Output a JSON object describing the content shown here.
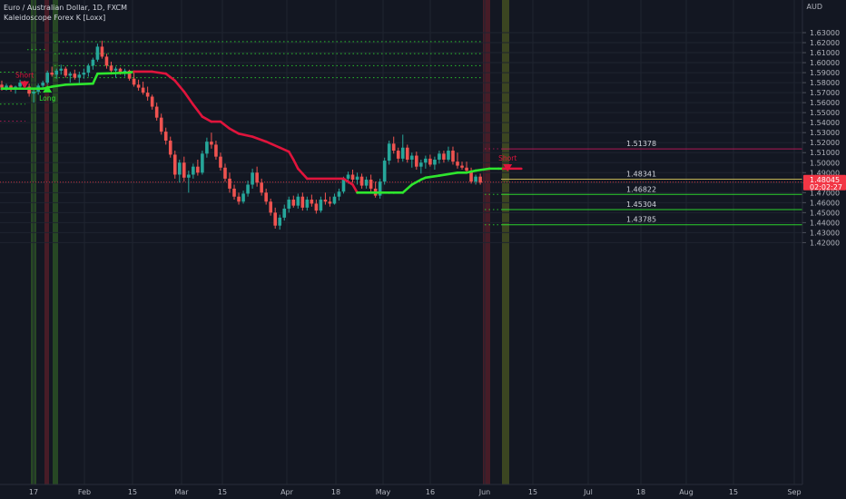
{
  "header": {
    "symbol_line": "Euro / Australian Dollar, 1D, FXCM",
    "indicator_line": "Kaleidoscope Forex K [Loxx]",
    "currency": "AUD"
  },
  "price_badge": {
    "price": "1.48045",
    "countdown": "02:02:27",
    "color": "#f23645"
  },
  "colors": {
    "background": "#131722",
    "up": "#26a69a",
    "down": "#ef5350",
    "trend_up": "#2ee62e",
    "trend_down": "#e0143c",
    "band_green": "#2f5a26",
    "band_red": "#5a1f2a",
    "band_olive": "#4a5522"
  },
  "chart_data": {
    "type": "candlestick",
    "y_range": [
      1.415,
      1.645
    ],
    "y_ticks": [
      "1.63000",
      "1.62000",
      "1.61000",
      "1.60000",
      "1.59000",
      "1.58000",
      "1.57000",
      "1.56000",
      "1.55000",
      "1.54000",
      "1.53000",
      "1.52000",
      "1.51000",
      "1.50000",
      "1.49000",
      "1.48000",
      "1.47000",
      "1.46000",
      "1.45000",
      "1.44000",
      "1.43000",
      "1.42000"
    ],
    "x_ticks": [
      "17",
      "Feb",
      "15",
      "Mar",
      "15",
      "Apr",
      "18",
      "May",
      "16",
      "Jun",
      "15",
      "Jul",
      "18",
      "Aug",
      "15",
      "Sep"
    ],
    "level_labels": [
      "1.51378",
      "1.48341",
      "1.46822",
      "1.45304",
      "1.43785"
    ],
    "levels": [
      {
        "value": 1.51378,
        "label": "1.51378",
        "color": "#c2185b",
        "labeled": true
      },
      {
        "value": 1.48341,
        "label": "1.48341",
        "color": "#d4c35a",
        "labeled": true
      },
      {
        "value": 1.46822,
        "label": "1.46822",
        "color": "#2ee62e",
        "labeled": true
      },
      {
        "value": 1.45304,
        "label": "1.45304",
        "color": "#2ee62e",
        "labeled": true
      },
      {
        "value": 1.43785,
        "label": "1.43785",
        "color": "#2ee62e",
        "labeled": true
      }
    ],
    "signals": [
      {
        "text": "Short",
        "type": "short",
        "day": 5,
        "price": 1.585
      },
      {
        "text": "Long",
        "type": "long",
        "day": 10,
        "price": 1.572
      },
      {
        "text": "Short",
        "type": "short",
        "day": 111,
        "price": 1.502
      }
    ],
    "trend_line": [
      [
        0,
        1.574,
        "up"
      ],
      [
        9,
        1.574,
        "up"
      ],
      [
        11,
        1.576,
        "up"
      ],
      [
        14,
        1.578,
        "up"
      ],
      [
        20,
        1.579,
        "up"
      ],
      [
        21,
        1.589,
        "up"
      ],
      [
        28,
        1.59,
        "up"
      ],
      [
        29,
        1.591,
        "down"
      ],
      [
        33,
        1.591,
        "down"
      ],
      [
        36,
        1.589,
        "down"
      ],
      [
        38,
        1.582,
        "down"
      ],
      [
        40,
        1.571,
        "down"
      ],
      [
        42,
        1.558,
        "down"
      ],
      [
        44,
        1.546,
        "down"
      ],
      [
        46,
        1.541,
        "down"
      ],
      [
        48,
        1.541,
        "down"
      ],
      [
        50,
        1.534,
        "down"
      ],
      [
        52,
        1.529,
        "down"
      ],
      [
        55,
        1.526,
        "down"
      ],
      [
        58,
        1.521,
        "down"
      ],
      [
        61,
        1.515,
        "down"
      ],
      [
        63,
        1.511,
        "down"
      ],
      [
        64,
        1.503,
        "down"
      ],
      [
        65,
        1.494,
        "down"
      ],
      [
        66,
        1.489,
        "down"
      ],
      [
        67,
        1.484,
        "down"
      ],
      [
        75,
        1.484,
        "down"
      ],
      [
        77,
        1.478,
        "down"
      ],
      [
        78,
        1.47,
        "up"
      ],
      [
        85,
        1.47,
        "up"
      ],
      [
        86,
        1.47,
        "up"
      ],
      [
        88,
        1.47,
        "up"
      ],
      [
        90,
        1.478,
        "up"
      ],
      [
        92,
        1.483,
        "up"
      ],
      [
        93,
        1.485,
        "up"
      ],
      [
        96,
        1.487,
        "up"
      ],
      [
        100,
        1.49,
        "up"
      ],
      [
        102,
        1.49,
        "up"
      ],
      [
        104,
        1.492,
        "up"
      ],
      [
        107,
        1.494,
        "up"
      ],
      [
        109,
        1.494,
        "up"
      ],
      [
        110,
        1.494,
        "down"
      ],
      [
        114,
        1.494,
        "down"
      ]
    ],
    "candles": [
      [
        0,
        1.578,
        1.582,
        1.572,
        1.575
      ],
      [
        1,
        1.575,
        1.579,
        1.572,
        1.577
      ],
      [
        2,
        1.577,
        1.578,
        1.571,
        1.573
      ],
      [
        3,
        1.573,
        1.577,
        1.569,
        1.576
      ],
      [
        4,
        1.576,
        1.583,
        1.574,
        1.58
      ],
      [
        5,
        1.58,
        1.582,
        1.575,
        1.576
      ],
      [
        6,
        1.576,
        1.579,
        1.566,
        1.569
      ],
      [
        7,
        1.569,
        1.574,
        1.56,
        1.571
      ],
      [
        8,
        1.571,
        1.579,
        1.568,
        1.577
      ],
      [
        9,
        1.577,
        1.582,
        1.574,
        1.58
      ],
      [
        10,
        1.58,
        1.592,
        1.578,
        1.59
      ],
      [
        11,
        1.59,
        1.596,
        1.586,
        1.588
      ],
      [
        12,
        1.588,
        1.594,
        1.584,
        1.592
      ],
      [
        13,
        1.592,
        1.598,
        1.588,
        1.594
      ],
      [
        14,
        1.594,
        1.596,
        1.585,
        1.587
      ],
      [
        15,
        1.587,
        1.591,
        1.58,
        1.589
      ],
      [
        16,
        1.589,
        1.593,
        1.583,
        1.585
      ],
      [
        17,
        1.585,
        1.591,
        1.579,
        1.588
      ],
      [
        18,
        1.588,
        1.594,
        1.584,
        1.59
      ],
      [
        19,
        1.59,
        1.599,
        1.586,
        1.597
      ],
      [
        20,
        1.597,
        1.605,
        1.593,
        1.603
      ],
      [
        21,
        1.603,
        1.619,
        1.601,
        1.616
      ],
      [
        22,
        1.616,
        1.622,
        1.604,
        1.606
      ],
      [
        23,
        1.606,
        1.609,
        1.594,
        1.597
      ],
      [
        24,
        1.597,
        1.601,
        1.588,
        1.592
      ],
      [
        25,
        1.592,
        1.596,
        1.585,
        1.594
      ],
      [
        26,
        1.594,
        1.595,
        1.588,
        1.59
      ],
      [
        27,
        1.59,
        1.594,
        1.586,
        1.592
      ],
      [
        28,
        1.592,
        1.593,
        1.582,
        1.584
      ],
      [
        29,
        1.584,
        1.59,
        1.576,
        1.578
      ],
      [
        30,
        1.578,
        1.583,
        1.572,
        1.575
      ],
      [
        31,
        1.575,
        1.581,
        1.568,
        1.57
      ],
      [
        32,
        1.57,
        1.576,
        1.562,
        1.566
      ],
      [
        33,
        1.566,
        1.568,
        1.553,
        1.556
      ],
      [
        34,
        1.556,
        1.56,
        1.542,
        1.545
      ],
      [
        35,
        1.545,
        1.549,
        1.528,
        1.531
      ],
      [
        36,
        1.531,
        1.535,
        1.518,
        1.522
      ],
      [
        37,
        1.522,
        1.526,
        1.505,
        1.508
      ],
      [
        38,
        1.508,
        1.512,
        1.484,
        1.488
      ],
      [
        39,
        1.488,
        1.503,
        1.48,
        1.5
      ],
      [
        40,
        1.5,
        1.506,
        1.481,
        1.485
      ],
      [
        41,
        1.485,
        1.492,
        1.47,
        1.488
      ],
      [
        42,
        1.488,
        1.499,
        1.484,
        1.496
      ],
      [
        43,
        1.496,
        1.503,
        1.487,
        1.49
      ],
      [
        44,
        1.49,
        1.512,
        1.488,
        1.509
      ],
      [
        45,
        1.509,
        1.525,
        1.505,
        1.521
      ],
      [
        46,
        1.521,
        1.53,
        1.514,
        1.518
      ],
      [
        47,
        1.518,
        1.522,
        1.503,
        1.506
      ],
      [
        48,
        1.506,
        1.51,
        1.492,
        1.495
      ],
      [
        49,
        1.495,
        1.499,
        1.481,
        1.484
      ],
      [
        50,
        1.484,
        1.49,
        1.47,
        1.474
      ],
      [
        51,
        1.474,
        1.478,
        1.463,
        1.466
      ],
      [
        52,
        1.466,
        1.47,
        1.458,
        1.461
      ],
      [
        53,
        1.461,
        1.472,
        1.459,
        1.469
      ],
      [
        54,
        1.469,
        1.482,
        1.466,
        1.478
      ],
      [
        55,
        1.478,
        1.494,
        1.474,
        1.49
      ],
      [
        56,
        1.49,
        1.496,
        1.476,
        1.48
      ],
      [
        57,
        1.48,
        1.484,
        1.467,
        1.47
      ],
      [
        58,
        1.47,
        1.474,
        1.458,
        1.461
      ],
      [
        59,
        1.461,
        1.464,
        1.447,
        1.45
      ],
      [
        60,
        1.45,
        1.455,
        1.434,
        1.437
      ],
      [
        61,
        1.437,
        1.448,
        1.433,
        1.445
      ],
      [
        62,
        1.445,
        1.458,
        1.442,
        1.454
      ],
      [
        63,
        1.454,
        1.466,
        1.45,
        1.463
      ],
      [
        64,
        1.463,
        1.467,
        1.455,
        1.457
      ],
      [
        65,
        1.457,
        1.469,
        1.454,
        1.466
      ],
      [
        66,
        1.466,
        1.47,
        1.452,
        1.455
      ],
      [
        67,
        1.455,
        1.466,
        1.452,
        1.463
      ],
      [
        68,
        1.463,
        1.468,
        1.456,
        1.459
      ],
      [
        69,
        1.459,
        1.463,
        1.449,
        1.452
      ],
      [
        70,
        1.452,
        1.466,
        1.45,
        1.463
      ],
      [
        71,
        1.463,
        1.47,
        1.458,
        1.461
      ],
      [
        72,
        1.461,
        1.466,
        1.456,
        1.459
      ],
      [
        73,
        1.459,
        1.469,
        1.458,
        1.466
      ],
      [
        74,
        1.466,
        1.474,
        1.462,
        1.471
      ],
      [
        75,
        1.471,
        1.486,
        1.469,
        1.484
      ],
      [
        76,
        1.484,
        1.491,
        1.479,
        1.488
      ],
      [
        77,
        1.488,
        1.493,
        1.48,
        1.483
      ],
      [
        78,
        1.483,
        1.49,
        1.478,
        1.486
      ],
      [
        79,
        1.486,
        1.489,
        1.474,
        1.477
      ],
      [
        80,
        1.477,
        1.486,
        1.474,
        1.483
      ],
      [
        81,
        1.483,
        1.488,
        1.471,
        1.474
      ],
      [
        82,
        1.474,
        1.481,
        1.465,
        1.467
      ],
      [
        83,
        1.467,
        1.484,
        1.464,
        1.481
      ],
      [
        84,
        1.481,
        1.505,
        1.478,
        1.502
      ],
      [
        85,
        1.502,
        1.522,
        1.498,
        1.519
      ],
      [
        86,
        1.519,
        1.526,
        1.509,
        1.512
      ],
      [
        87,
        1.512,
        1.515,
        1.5,
        1.504
      ],
      [
        88,
        1.504,
        1.528,
        1.501,
        1.515
      ],
      [
        89,
        1.515,
        1.518,
        1.5,
        1.503
      ],
      [
        90,
        1.503,
        1.51,
        1.495,
        1.507
      ],
      [
        91,
        1.507,
        1.511,
        1.493,
        1.496
      ],
      [
        92,
        1.496,
        1.503,
        1.489,
        1.5
      ],
      [
        93,
        1.5,
        1.507,
        1.494,
        1.504
      ],
      [
        94,
        1.504,
        1.508,
        1.496,
        1.498
      ],
      [
        95,
        1.498,
        1.506,
        1.493,
        1.503
      ],
      [
        96,
        1.503,
        1.512,
        1.499,
        1.509
      ],
      [
        97,
        1.509,
        1.512,
        1.5,
        1.503
      ],
      [
        98,
        1.503,
        1.516,
        1.501,
        1.512
      ],
      [
        99,
        1.512,
        1.516,
        1.498,
        1.501
      ],
      [
        100,
        1.501,
        1.51,
        1.494,
        1.497
      ],
      [
        101,
        1.497,
        1.501,
        1.493,
        1.495
      ],
      [
        102,
        1.495,
        1.501,
        1.49,
        1.492
      ],
      [
        103,
        1.492,
        1.495,
        1.479,
        1.481
      ],
      [
        104,
        1.481,
        1.488,
        1.478,
        1.486
      ],
      [
        105,
        1.486,
        1.489,
        1.478,
        1.48
      ]
    ]
  }
}
